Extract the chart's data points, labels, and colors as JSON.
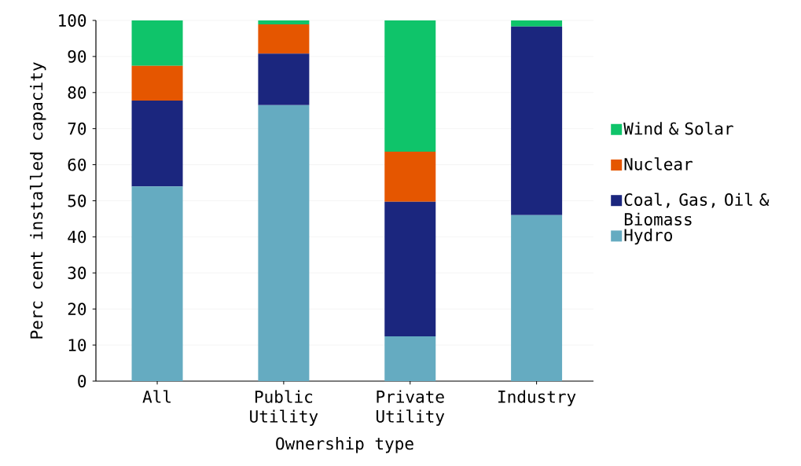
{
  "chart_data": {
    "type": "bar",
    "stacked": true,
    "xlabel": "Ownership type",
    "ylabel": "Perc cent installed capacity",
    "categories": [
      "All",
      "Public Utility",
      "Private Utility",
      "Industry"
    ],
    "series": [
      {
        "name": "Hydro",
        "color": "#65abc1",
        "values": [
          54.0,
          76.5,
          12.4,
          46.0
        ]
      },
      {
        "name": "Coal, Gas, Oil & Biomass",
        "color": "#1b267e",
        "values": [
          23.8,
          14.3,
          37.3,
          52.3
        ]
      },
      {
        "name": "Nuclear",
        "color": "#e55600",
        "values": [
          9.6,
          8.1,
          13.9,
          0
        ]
      },
      {
        "name": "Wind & Solar",
        "color": "#0fc46a",
        "values": [
          12.6,
          1.1,
          36.4,
          1.7
        ]
      }
    ],
    "ylim": [
      0,
      100
    ],
    "yticks": [
      0,
      10,
      20,
      30,
      40,
      50,
      60,
      70,
      80,
      90,
      100
    ],
    "grid": "y",
    "legend": "right"
  }
}
